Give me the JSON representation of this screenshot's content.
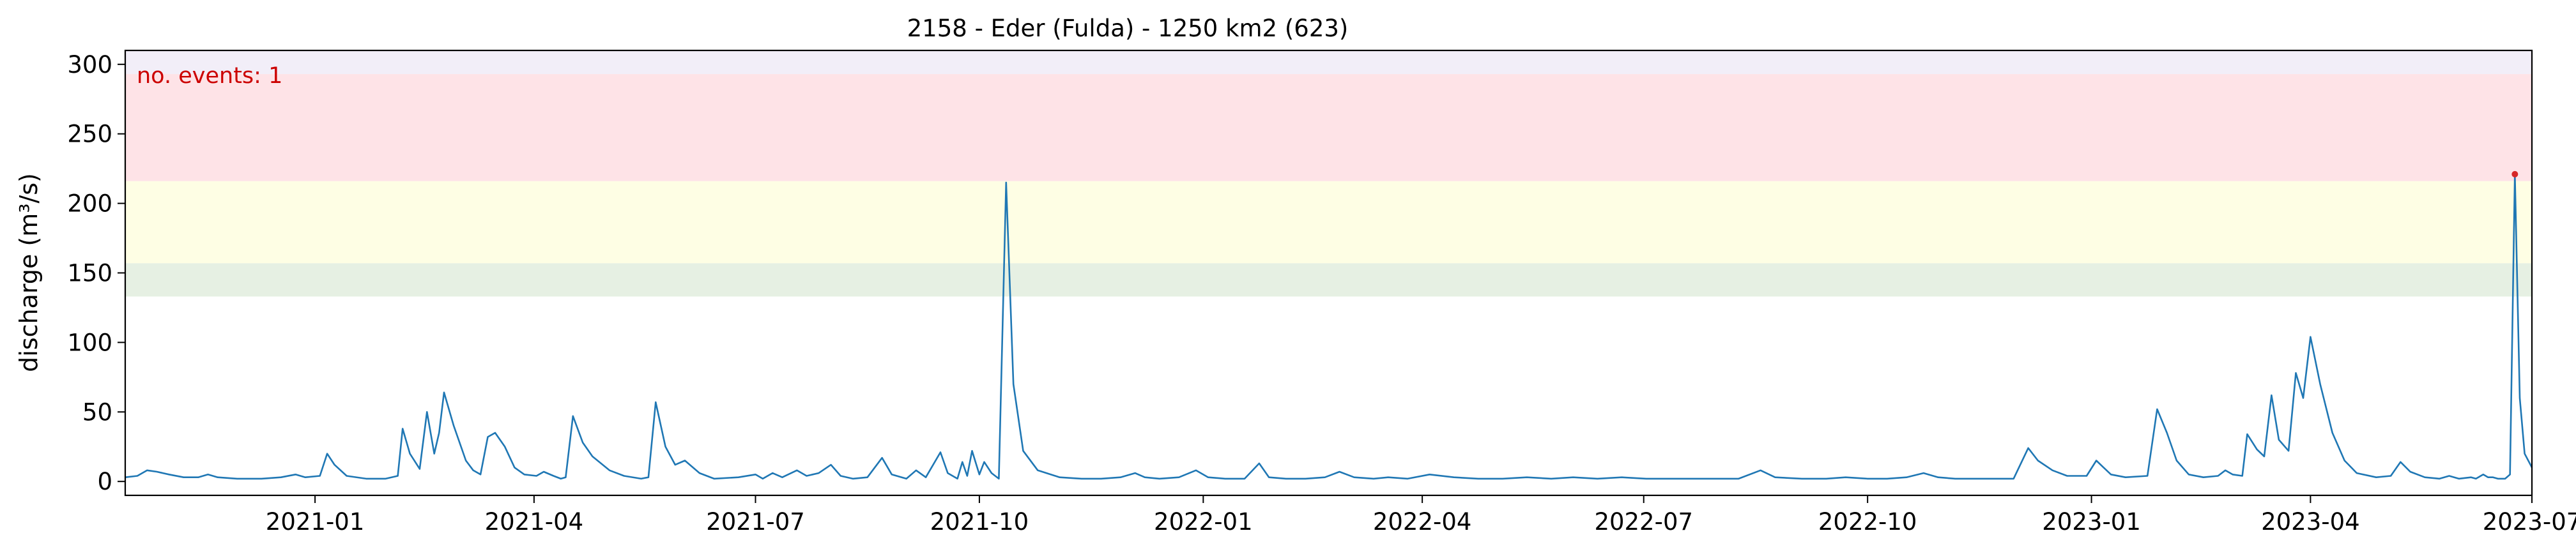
{
  "chart_data": {
    "type": "line",
    "title": "2158 - Eder (Fulda) - 1250 km2 (623)",
    "xlabel": "",
    "ylabel": "discharge (m³/s)",
    "xlim": [
      "2020-10-15",
      "2023-07-01"
    ],
    "ylim": [
      -10,
      310
    ],
    "yticks": [
      0,
      50,
      100,
      150,
      200,
      250,
      300
    ],
    "xticks": [
      {
        "date": "2021-01-01",
        "label": "2021-01"
      },
      {
        "date": "2021-04-01",
        "label": "2021-04"
      },
      {
        "date": "2021-07-01",
        "label": "2021-07"
      },
      {
        "date": "2021-10-01",
        "label": "2021-10"
      },
      {
        "date": "2022-01-01",
        "label": "2022-01"
      },
      {
        "date": "2022-04-01",
        "label": "2022-04"
      },
      {
        "date": "2022-07-01",
        "label": "2022-07"
      },
      {
        "date": "2022-10-01",
        "label": "2022-10"
      },
      {
        "date": "2023-01-01",
        "label": "2023-01"
      },
      {
        "date": "2023-04-01",
        "label": "2023-04"
      },
      {
        "date": "2023-07-01",
        "label": "2023-07"
      }
    ],
    "grid": false,
    "bands": [
      {
        "y0": 133,
        "y1": 157,
        "color": "#e6f0e3"
      },
      {
        "y0": 157,
        "y1": 216,
        "color": "#fefee4"
      },
      {
        "y0": 216,
        "y1": 293,
        "color": "#fee3e7"
      },
      {
        "y0": 293,
        "y1": 310,
        "color": "#f2eef8"
      }
    ],
    "annotation": {
      "text": "no. events: 1",
      "color": "#cc0000"
    },
    "event_marker": {
      "date": "2023-06-24",
      "value": 221,
      "color": "#d62728"
    },
    "series": [
      {
        "color": "#1f77b4",
        "points": [
          [
            "2020-10-15",
            3
          ],
          [
            "2020-10-20",
            4
          ],
          [
            "2020-10-24",
            8
          ],
          [
            "2020-10-28",
            7
          ],
          [
            "2020-11-02",
            5
          ],
          [
            "2020-11-08",
            3
          ],
          [
            "2020-11-14",
            3
          ],
          [
            "2020-11-18",
            5
          ],
          [
            "2020-11-22",
            3
          ],
          [
            "2020-11-30",
            2
          ],
          [
            "2020-12-10",
            2
          ],
          [
            "2020-12-18",
            3
          ],
          [
            "2020-12-24",
            5
          ],
          [
            "2020-12-28",
            3
          ],
          [
            "2021-01-03",
            4
          ],
          [
            "2021-01-06",
            20
          ],
          [
            "2021-01-09",
            12
          ],
          [
            "2021-01-14",
            4
          ],
          [
            "2021-01-22",
            2
          ],
          [
            "2021-01-30",
            2
          ],
          [
            "2021-02-04",
            4
          ],
          [
            "2021-02-06",
            38
          ],
          [
            "2021-02-09",
            20
          ],
          [
            "2021-02-13",
            9
          ],
          [
            "2021-02-16",
            50
          ],
          [
            "2021-02-19",
            20
          ],
          [
            "2021-02-21",
            35
          ],
          [
            "2021-02-23",
            64
          ],
          [
            "2021-02-27",
            40
          ],
          [
            "2021-03-04",
            15
          ],
          [
            "2021-03-07",
            8
          ],
          [
            "2021-03-10",
            5
          ],
          [
            "2021-03-13",
            32
          ],
          [
            "2021-03-16",
            35
          ],
          [
            "2021-03-20",
            25
          ],
          [
            "2021-03-24",
            10
          ],
          [
            "2021-03-28",
            5
          ],
          [
            "2021-04-02",
            4
          ],
          [
            "2021-04-05",
            7
          ],
          [
            "2021-04-09",
            4
          ],
          [
            "2021-04-12",
            2
          ],
          [
            "2021-04-14",
            3
          ],
          [
            "2021-04-17",
            47
          ],
          [
            "2021-04-21",
            28
          ],
          [
            "2021-04-25",
            18
          ],
          [
            "2021-05-02",
            8
          ],
          [
            "2021-05-08",
            4
          ],
          [
            "2021-05-15",
            2
          ],
          [
            "2021-05-18",
            3
          ],
          [
            "2021-05-21",
            57
          ],
          [
            "2021-05-25",
            25
          ],
          [
            "2021-05-29",
            12
          ],
          [
            "2021-06-02",
            15
          ],
          [
            "2021-06-08",
            6
          ],
          [
            "2021-06-14",
            2
          ],
          [
            "2021-06-24",
            3
          ],
          [
            "2021-07-01",
            5
          ],
          [
            "2021-07-04",
            2
          ],
          [
            "2021-07-08",
            6
          ],
          [
            "2021-07-12",
            3
          ],
          [
            "2021-07-18",
            8
          ],
          [
            "2021-07-22",
            4
          ],
          [
            "2021-07-27",
            6
          ],
          [
            "2021-08-01",
            12
          ],
          [
            "2021-08-05",
            4
          ],
          [
            "2021-08-10",
            2
          ],
          [
            "2021-08-16",
            3
          ],
          [
            "2021-08-22",
            17
          ],
          [
            "2021-08-26",
            5
          ],
          [
            "2021-09-01",
            2
          ],
          [
            "2021-09-05",
            8
          ],
          [
            "2021-09-09",
            3
          ],
          [
            "2021-09-15",
            21
          ],
          [
            "2021-09-18",
            6
          ],
          [
            "2021-09-22",
            2
          ],
          [
            "2021-09-24",
            14
          ],
          [
            "2021-09-26",
            4
          ],
          [
            "2021-09-28",
            22
          ],
          [
            "2021-10-01",
            5
          ],
          [
            "2021-10-03",
            14
          ],
          [
            "2021-10-06",
            6
          ],
          [
            "2021-10-09",
            2
          ],
          [
            "2021-10-12",
            215
          ],
          [
            "2021-10-15",
            70
          ],
          [
            "2021-10-19",
            22
          ],
          [
            "2021-10-25",
            8
          ],
          [
            "2021-11-03",
            3
          ],
          [
            "2021-11-12",
            2
          ],
          [
            "2021-11-20",
            2
          ],
          [
            "2021-11-28",
            3
          ],
          [
            "2021-12-04",
            6
          ],
          [
            "2021-12-08",
            3
          ],
          [
            "2021-12-14",
            2
          ],
          [
            "2021-12-22",
            3
          ],
          [
            "2021-12-29",
            8
          ],
          [
            "2022-01-03",
            3
          ],
          [
            "2022-01-10",
            2
          ],
          [
            "2022-01-18",
            2
          ],
          [
            "2022-01-24",
            13
          ],
          [
            "2022-01-28",
            3
          ],
          [
            "2022-02-04",
            2
          ],
          [
            "2022-02-12",
            2
          ],
          [
            "2022-02-20",
            3
          ],
          [
            "2022-02-26",
            7
          ],
          [
            "2022-03-04",
            3
          ],
          [
            "2022-03-12",
            2
          ],
          [
            "2022-03-18",
            3
          ],
          [
            "2022-03-26",
            2
          ],
          [
            "2022-04-04",
            5
          ],
          [
            "2022-04-14",
            3
          ],
          [
            "2022-04-24",
            2
          ],
          [
            "2022-05-04",
            2
          ],
          [
            "2022-05-14",
            3
          ],
          [
            "2022-05-24",
            2
          ],
          [
            "2022-06-02",
            3
          ],
          [
            "2022-06-12",
            2
          ],
          [
            "2022-06-22",
            3
          ],
          [
            "2022-07-02",
            2
          ],
          [
            "2022-07-12",
            2
          ],
          [
            "2022-07-26",
            2
          ],
          [
            "2022-08-09",
            2
          ],
          [
            "2022-08-18",
            8
          ],
          [
            "2022-08-24",
            3
          ],
          [
            "2022-09-04",
            2
          ],
          [
            "2022-09-14",
            2
          ],
          [
            "2022-09-22",
            3
          ],
          [
            "2022-10-01",
            2
          ],
          [
            "2022-10-09",
            2
          ],
          [
            "2022-10-17",
            3
          ],
          [
            "2022-10-24",
            6
          ],
          [
            "2022-10-30",
            3
          ],
          [
            "2022-11-06",
            2
          ],
          [
            "2022-11-14",
            2
          ],
          [
            "2022-11-22",
            2
          ],
          [
            "2022-11-30",
            2
          ],
          [
            "2022-12-06",
            24
          ],
          [
            "2022-12-10",
            15
          ],
          [
            "2022-12-16",
            8
          ],
          [
            "2022-12-22",
            4
          ],
          [
            "2022-12-30",
            4
          ],
          [
            "2023-01-03",
            15
          ],
          [
            "2023-01-06",
            10
          ],
          [
            "2023-01-09",
            5
          ],
          [
            "2023-01-15",
            3
          ],
          [
            "2023-01-24",
            4
          ],
          [
            "2023-01-28",
            52
          ],
          [
            "2023-02-01",
            35
          ],
          [
            "2023-02-05",
            15
          ],
          [
            "2023-02-10",
            5
          ],
          [
            "2023-02-16",
            3
          ],
          [
            "2023-02-22",
            4
          ],
          [
            "2023-02-25",
            8
          ],
          [
            "2023-02-28",
            5
          ],
          [
            "2023-03-04",
            4
          ],
          [
            "2023-03-06",
            34
          ],
          [
            "2023-03-10",
            23
          ],
          [
            "2023-03-13",
            18
          ],
          [
            "2023-03-16",
            62
          ],
          [
            "2023-03-19",
            30
          ],
          [
            "2023-03-23",
            22
          ],
          [
            "2023-03-26",
            78
          ],
          [
            "2023-03-29",
            60
          ],
          [
            "2023-04-01",
            104
          ],
          [
            "2023-04-05",
            70
          ],
          [
            "2023-04-10",
            35
          ],
          [
            "2023-04-15",
            15
          ],
          [
            "2023-04-20",
            6
          ],
          [
            "2023-04-28",
            3
          ],
          [
            "2023-05-04",
            4
          ],
          [
            "2023-05-08",
            14
          ],
          [
            "2023-05-12",
            7
          ],
          [
            "2023-05-18",
            3
          ],
          [
            "2023-05-24",
            2
          ],
          [
            "2023-05-28",
            4
          ],
          [
            "2023-06-01",
            2
          ],
          [
            "2023-06-06",
            3
          ],
          [
            "2023-06-08",
            2
          ],
          [
            "2023-06-11",
            5
          ],
          [
            "2023-06-13",
            3
          ],
          [
            "2023-06-15",
            3
          ],
          [
            "2023-06-17",
            2
          ],
          [
            "2023-06-20",
            2
          ],
          [
            "2023-06-22",
            5
          ],
          [
            "2023-06-24",
            221
          ],
          [
            "2023-06-26",
            60
          ],
          [
            "2023-06-28",
            20
          ],
          [
            "2023-07-01",
            10
          ]
        ]
      }
    ]
  }
}
